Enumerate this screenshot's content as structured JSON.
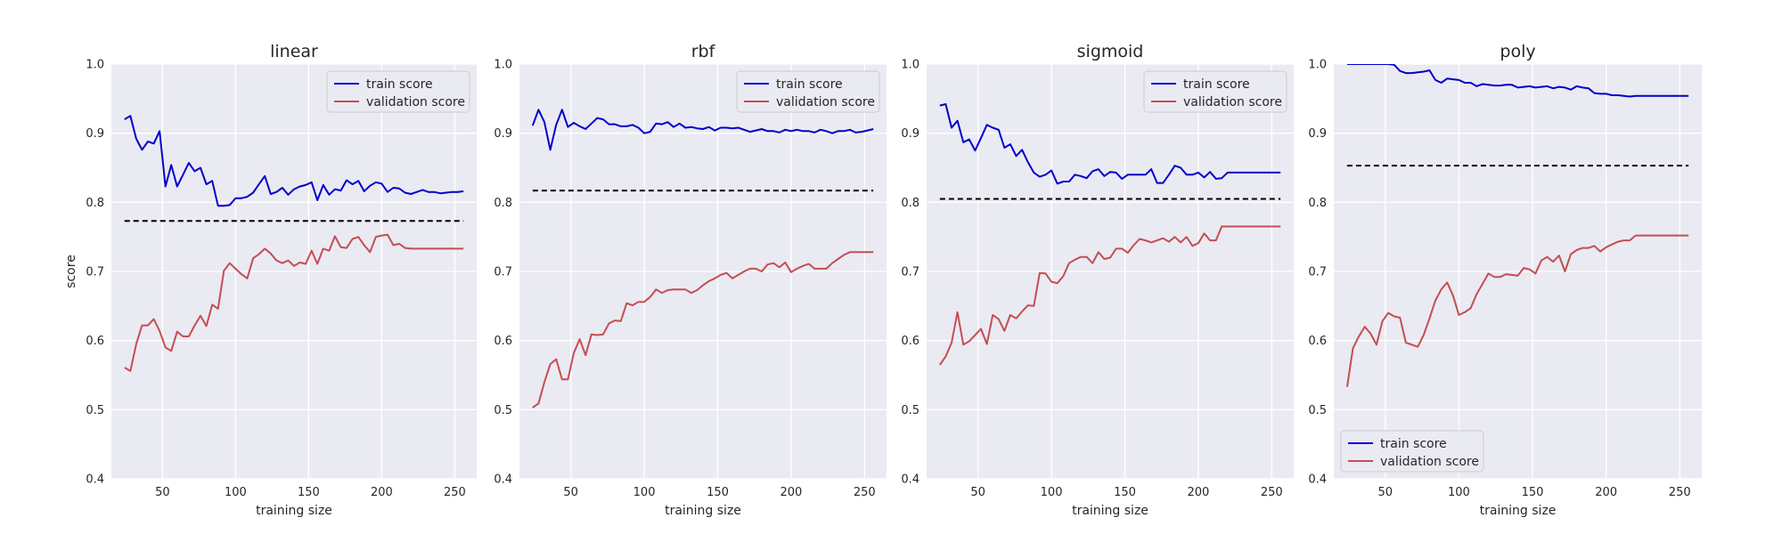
{
  "figure": {
    "ylabel": "score",
    "colors": {
      "train": "#0000cc",
      "validation": "#c44e52",
      "baseline": "#000000",
      "background": "#eaeaf2"
    }
  },
  "chart_data": [
    {
      "type": "line",
      "title": "linear",
      "xlabel": "training size",
      "ylabel": "score",
      "xlim": [
        15,
        265
      ],
      "ylim": [
        0.4,
        1.0
      ],
      "xticks": [
        50,
        100,
        150,
        200,
        250
      ],
      "yticks": [
        0.4,
        0.5,
        0.6,
        0.7,
        0.8,
        0.9,
        1.0
      ],
      "grid": true,
      "legend": "top-right",
      "x": [
        24,
        28,
        32,
        36,
        40,
        44,
        48,
        52,
        56,
        60,
        64,
        68,
        72,
        76,
        80,
        84,
        88,
        92,
        96,
        100,
        104,
        108,
        112,
        116,
        120,
        124,
        128,
        132,
        136,
        140,
        144,
        148,
        152,
        156,
        160,
        164,
        168,
        172,
        176,
        180,
        184,
        188,
        192,
        196,
        200,
        204,
        208,
        212,
        216,
        220,
        224,
        228,
        232,
        236,
        240,
        244,
        248,
        252,
        256
      ],
      "series": [
        {
          "name": "train score",
          "color": "#0000cc",
          "values": [
            0.92,
            0.925,
            0.892,
            0.876,
            0.888,
            0.885,
            0.903,
            0.823,
            0.854,
            0.823,
            0.84,
            0.857,
            0.845,
            0.85,
            0.826,
            0.831,
            0.795,
            0.795,
            0.796,
            0.806,
            0.806,
            0.808,
            0.814,
            0.826,
            0.838,
            0.812,
            0.815,
            0.821,
            0.811,
            0.819,
            0.823,
            0.825,
            0.829,
            0.803,
            0.825,
            0.811,
            0.819,
            0.817,
            0.832,
            0.826,
            0.831,
            0.816,
            0.824,
            0.829,
            0.827,
            0.815,
            0.821,
            0.82,
            0.814,
            0.812,
            0.815,
            0.818,
            0.815,
            0.815,
            0.813,
            0.814,
            0.815,
            0.815,
            0.816
          ]
        },
        {
          "name": "validation score",
          "color": "#c44e52",
          "values": [
            0.561,
            0.556,
            0.595,
            0.622,
            0.622,
            0.631,
            0.614,
            0.59,
            0.585,
            0.613,
            0.606,
            0.606,
            0.622,
            0.636,
            0.621,
            0.652,
            0.646,
            0.701,
            0.712,
            0.704,
            0.696,
            0.69,
            0.719,
            0.725,
            0.733,
            0.726,
            0.716,
            0.712,
            0.716,
            0.708,
            0.713,
            0.711,
            0.73,
            0.711,
            0.733,
            0.73,
            0.751,
            0.735,
            0.734,
            0.747,
            0.75,
            0.738,
            0.728,
            0.75,
            0.752,
            0.753,
            0.738,
            0.74,
            0.734,
            0.733,
            0.733,
            0.733,
            0.733,
            0.733,
            0.733,
            0.733,
            0.733,
            0.733,
            0.733
          ]
        }
      ],
      "baseline": {
        "value": 0.773,
        "x_range": [
          24,
          256
        ]
      }
    },
    {
      "type": "line",
      "title": "rbf",
      "xlabel": "training size",
      "ylabel": "",
      "xlim": [
        15,
        265
      ],
      "ylim": [
        0.4,
        1.0
      ],
      "xticks": [
        50,
        100,
        150,
        200,
        250
      ],
      "yticks": [
        0.4,
        0.5,
        0.6,
        0.7,
        0.8,
        0.9,
        1.0
      ],
      "grid": true,
      "legend": "top-right",
      "x": [
        24,
        28,
        32,
        36,
        40,
        44,
        48,
        52,
        56,
        60,
        64,
        68,
        72,
        76,
        80,
        84,
        88,
        92,
        96,
        100,
        104,
        108,
        112,
        116,
        120,
        124,
        128,
        132,
        136,
        140,
        144,
        148,
        152,
        156,
        160,
        164,
        168,
        172,
        176,
        180,
        184,
        188,
        192,
        196,
        200,
        204,
        208,
        212,
        216,
        220,
        224,
        228,
        232,
        236,
        240,
        244,
        248,
        252,
        256
      ],
      "series": [
        {
          "name": "train score",
          "color": "#0000cc",
          "values": [
            0.911,
            0.934,
            0.916,
            0.876,
            0.912,
            0.934,
            0.909,
            0.915,
            0.91,
            0.906,
            0.914,
            0.922,
            0.92,
            0.913,
            0.913,
            0.91,
            0.91,
            0.912,
            0.908,
            0.9,
            0.902,
            0.914,
            0.913,
            0.916,
            0.909,
            0.914,
            0.908,
            0.909,
            0.907,
            0.906,
            0.909,
            0.904,
            0.908,
            0.908,
            0.907,
            0.908,
            0.905,
            0.902,
            0.904,
            0.906,
            0.903,
            0.903,
            0.901,
            0.905,
            0.903,
            0.905,
            0.903,
            0.903,
            0.901,
            0.905,
            0.903,
            0.9,
            0.903,
            0.903,
            0.905,
            0.901,
            0.902,
            0.904,
            0.906
          ]
        },
        {
          "name": "validation score",
          "color": "#c44e52",
          "values": [
            0.503,
            0.509,
            0.54,
            0.566,
            0.573,
            0.544,
            0.544,
            0.582,
            0.602,
            0.579,
            0.609,
            0.608,
            0.609,
            0.625,
            0.629,
            0.628,
            0.654,
            0.651,
            0.656,
            0.656,
            0.663,
            0.674,
            0.669,
            0.673,
            0.674,
            0.674,
            0.674,
            0.669,
            0.673,
            0.68,
            0.686,
            0.69,
            0.695,
            0.698,
            0.69,
            0.695,
            0.7,
            0.704,
            0.704,
            0.7,
            0.71,
            0.712,
            0.706,
            0.713,
            0.699,
            0.704,
            0.708,
            0.711,
            0.704,
            0.704,
            0.704,
            0.712,
            0.718,
            0.724,
            0.728,
            0.728,
            0.728,
            0.728,
            0.728
          ]
        }
      ],
      "baseline": {
        "value": 0.817,
        "x_range": [
          24,
          256
        ]
      }
    },
    {
      "type": "line",
      "title": "sigmoid",
      "xlabel": "training size",
      "ylabel": "",
      "xlim": [
        15,
        265
      ],
      "ylim": [
        0.4,
        1.0
      ],
      "xticks": [
        50,
        100,
        150,
        200,
        250
      ],
      "yticks": [
        0.4,
        0.5,
        0.6,
        0.7,
        0.8,
        0.9,
        1.0
      ],
      "grid": true,
      "legend": "top-right",
      "x": [
        24,
        28,
        32,
        36,
        40,
        44,
        48,
        52,
        56,
        60,
        64,
        68,
        72,
        76,
        80,
        84,
        88,
        92,
        96,
        100,
        104,
        108,
        112,
        116,
        120,
        124,
        128,
        132,
        136,
        140,
        144,
        148,
        152,
        156,
        160,
        164,
        168,
        172,
        176,
        180,
        184,
        188,
        192,
        196,
        200,
        204,
        208,
        212,
        216,
        220,
        224,
        228,
        232,
        236,
        240,
        244,
        248,
        252,
        256
      ],
      "series": [
        {
          "name": "train score",
          "color": "#0000cc",
          "values": [
            0.94,
            0.942,
            0.908,
            0.918,
            0.887,
            0.891,
            0.875,
            0.893,
            0.912,
            0.908,
            0.905,
            0.879,
            0.884,
            0.867,
            0.876,
            0.858,
            0.843,
            0.837,
            0.84,
            0.846,
            0.827,
            0.83,
            0.83,
            0.84,
            0.838,
            0.835,
            0.845,
            0.848,
            0.838,
            0.844,
            0.843,
            0.834,
            0.84,
            0.84,
            0.84,
            0.84,
            0.848,
            0.828,
            0.828,
            0.84,
            0.853,
            0.85,
            0.84,
            0.84,
            0.843,
            0.836,
            0.844,
            0.834,
            0.835,
            0.843,
            0.843,
            0.843,
            0.843,
            0.843,
            0.843,
            0.843,
            0.843,
            0.843,
            0.843
          ]
        },
        {
          "name": "validation score",
          "color": "#c44e52",
          "values": [
            0.565,
            0.577,
            0.597,
            0.641,
            0.594,
            0.599,
            0.608,
            0.617,
            0.595,
            0.637,
            0.631,
            0.614,
            0.637,
            0.632,
            0.642,
            0.651,
            0.65,
            0.698,
            0.697,
            0.685,
            0.683,
            0.693,
            0.712,
            0.717,
            0.721,
            0.721,
            0.712,
            0.728,
            0.718,
            0.72,
            0.733,
            0.733,
            0.727,
            0.738,
            0.747,
            0.745,
            0.742,
            0.745,
            0.748,
            0.743,
            0.75,
            0.742,
            0.75,
            0.737,
            0.741,
            0.755,
            0.745,
            0.745,
            0.765,
            0.765,
            0.765,
            0.765,
            0.765,
            0.765,
            0.765,
            0.765,
            0.765,
            0.765,
            0.765
          ]
        }
      ],
      "baseline": {
        "value": 0.805,
        "x_range": [
          24,
          256
        ]
      }
    },
    {
      "type": "line",
      "title": "poly",
      "xlabel": "training size",
      "ylabel": "",
      "xlim": [
        15,
        265
      ],
      "ylim": [
        0.4,
        1.0
      ],
      "xticks": [
        50,
        100,
        150,
        200,
        250
      ],
      "yticks": [
        0.4,
        0.5,
        0.6,
        0.7,
        0.8,
        0.9,
        1.0
      ],
      "grid": true,
      "legend": "bottom-left",
      "x": [
        24,
        28,
        32,
        36,
        40,
        44,
        48,
        52,
        56,
        60,
        64,
        68,
        72,
        76,
        80,
        84,
        88,
        92,
        96,
        100,
        104,
        108,
        112,
        116,
        120,
        124,
        128,
        132,
        136,
        140,
        144,
        148,
        152,
        156,
        160,
        164,
        168,
        172,
        176,
        180,
        184,
        188,
        192,
        196,
        200,
        204,
        208,
        212,
        216,
        220,
        224,
        228,
        232,
        236,
        240,
        244,
        248,
        252,
        256
      ],
      "series": [
        {
          "name": "train score",
          "color": "#0000cc",
          "values": [
            1.0,
            1.0,
            1.0,
            1.0,
            1.0,
            1.0,
            1.0,
            1.0,
            0.999,
            0.99,
            0.987,
            0.987,
            0.988,
            0.989,
            0.991,
            0.977,
            0.973,
            0.979,
            0.978,
            0.977,
            0.973,
            0.973,
            0.968,
            0.971,
            0.97,
            0.969,
            0.969,
            0.97,
            0.97,
            0.966,
            0.967,
            0.968,
            0.966,
            0.967,
            0.968,
            0.965,
            0.967,
            0.966,
            0.963,
            0.968,
            0.966,
            0.965,
            0.958,
            0.957,
            0.957,
            0.955,
            0.955,
            0.954,
            0.953,
            0.954,
            0.954,
            0.954,
            0.954,
            0.954,
            0.954,
            0.954,
            0.954,
            0.954,
            0.954
          ]
        },
        {
          "name": "validation score",
          "color": "#c44e52",
          "values": [
            0.533,
            0.589,
            0.606,
            0.62,
            0.61,
            0.594,
            0.628,
            0.64,
            0.635,
            0.633,
            0.597,
            0.594,
            0.591,
            0.608,
            0.632,
            0.658,
            0.674,
            0.684,
            0.665,
            0.637,
            0.641,
            0.647,
            0.667,
            0.682,
            0.697,
            0.692,
            0.692,
            0.696,
            0.695,
            0.694,
            0.705,
            0.703,
            0.697,
            0.716,
            0.721,
            0.714,
            0.723,
            0.7,
            0.725,
            0.731,
            0.734,
            0.734,
            0.737,
            0.729,
            0.735,
            0.739,
            0.743,
            0.745,
            0.745,
            0.752,
            0.752,
            0.752,
            0.752,
            0.752,
            0.752,
            0.752,
            0.752,
            0.752,
            0.752
          ]
        }
      ],
      "baseline": {
        "value": 0.853,
        "x_range": [
          24,
          256
        ]
      }
    }
  ]
}
